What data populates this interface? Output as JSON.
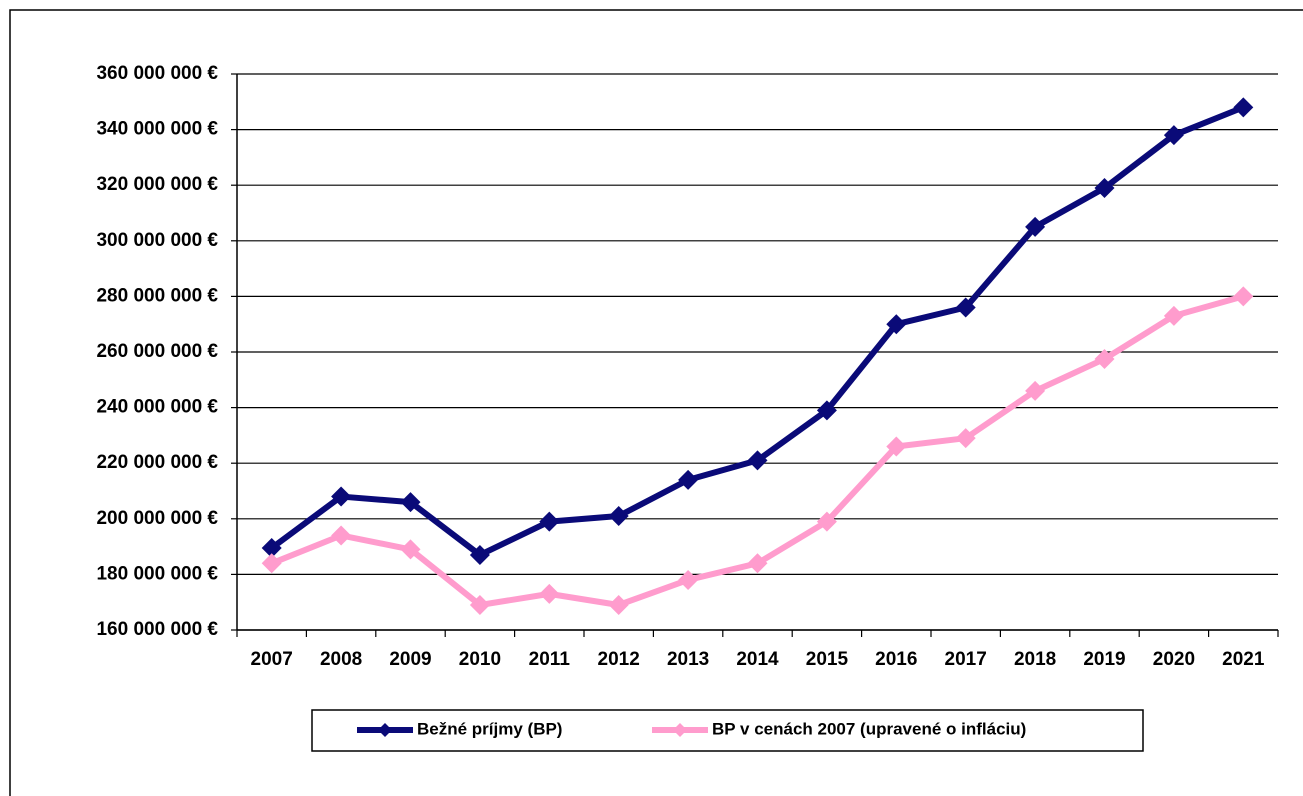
{
  "chart_data": {
    "type": "line",
    "categories": [
      "2007",
      "2008",
      "2009",
      "2010",
      "2011",
      "2012",
      "2013",
      "2014",
      "2015",
      "2016",
      "2017",
      "2018",
      "2019",
      "2020",
      "2021"
    ],
    "series": [
      {
        "name": "Bežné príjmy (BP)",
        "color": "#0a0a78",
        "values": [
          189500000,
          208000000,
          206000000,
          187000000,
          199000000,
          201000000,
          214000000,
          221000000,
          239000000,
          270000000,
          276000000,
          305000000,
          319000000,
          338000000,
          348000000
        ]
      },
      {
        "name": "BP v cenách 2007 (upravené o infláciu)",
        "color": "#ff9ccd",
        "values": [
          184000000,
          194000000,
          189000000,
          169000000,
          173000000,
          169000000,
          178000000,
          184000000,
          199000000,
          226000000,
          229000000,
          246000000,
          257500000,
          273000000,
          280000000
        ]
      }
    ],
    "ylim": [
      160000000,
      360000000
    ],
    "yticks": [
      {
        "value": 160000000,
        "label": "160 000 000 €"
      },
      {
        "value": 180000000,
        "label": "180 000 000 €"
      },
      {
        "value": 200000000,
        "label": "200 000 000 €"
      },
      {
        "value": 220000000,
        "label": "220 000 000 €"
      },
      {
        "value": 240000000,
        "label": "240 000 000 €"
      },
      {
        "value": 260000000,
        "label": "260 000 000 €"
      },
      {
        "value": 280000000,
        "label": "280 000 000 €"
      },
      {
        "value": 300000000,
        "label": "300 000 000 €"
      },
      {
        "value": 320000000,
        "label": "320 000 000 €"
      },
      {
        "value": 340000000,
        "label": "340 000 000 €"
      },
      {
        "value": 360000000,
        "label": "360 000 000 €"
      }
    ],
    "grid": true,
    "legend": "bottom"
  }
}
